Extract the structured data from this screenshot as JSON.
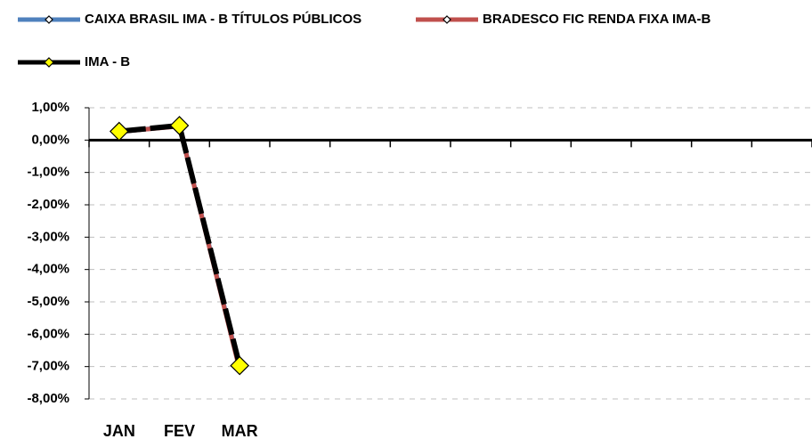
{
  "chart_data": {
    "type": "line",
    "categories": [
      "JAN",
      "FEV",
      "MAR",
      null,
      null,
      null,
      null,
      null,
      null,
      null,
      null,
      null
    ],
    "series": [
      {
        "name": "CAIXA BRASIL IMA - B TÍTULOS PÚBLICOS",
        "color": "#4f81bd",
        "values": [
          0.26,
          0.44,
          -7.05,
          null,
          null,
          null,
          null,
          null,
          null,
          null,
          null,
          null
        ]
      },
      {
        "name": "BRADESCO FIC RENDA FIXA IMA-B",
        "color": "#c0504d",
        "values": [
          0.26,
          0.43,
          -7.1,
          null,
          null,
          null,
          null,
          null,
          null,
          null,
          null,
          null
        ]
      },
      {
        "name": "IMA - B",
        "color": "#000000",
        "marker_color": "#ffff00",
        "values": [
          0.27,
          0.45,
          -6.97,
          null,
          null,
          null,
          null,
          null,
          null,
          null,
          null,
          null
        ]
      }
    ],
    "ylim": [
      -8,
      1
    ],
    "yticks": [
      {
        "value": 1,
        "label": "1,00%"
      },
      {
        "value": 0,
        "label": "0,00%"
      },
      {
        "value": -1,
        "label": "-1,00%"
      },
      {
        "value": -2,
        "label": "-2,00%"
      },
      {
        "value": -3,
        "label": "-3,00%"
      },
      {
        "value": -4,
        "label": "-4,00%"
      },
      {
        "value": -5,
        "label": "-5,00%"
      },
      {
        "value": -6,
        "label": "-6,00%"
      },
      {
        "value": -7,
        "label": "-7,00%"
      },
      {
        "value": -8,
        "label": "-8,00%"
      }
    ],
    "grid": true,
    "legend": "top"
  }
}
